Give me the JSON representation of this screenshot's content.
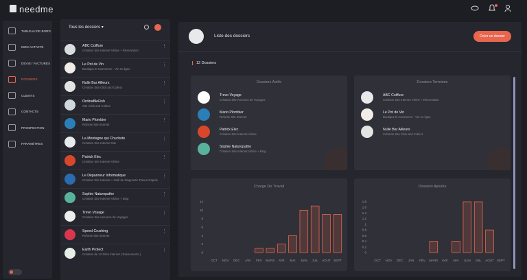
{
  "header": {
    "logo": "needme"
  },
  "sidebar": {
    "items": [
      "TABLEAU DE BORD",
      "MON ACTIVITÉ",
      "DEVIS / FACTURES",
      "DOSSIERS",
      "CLIENTS",
      "CONTACTS",
      "PROSPECTION",
      "PARAMÈTRES"
    ]
  },
  "folders": {
    "filter": "Tous les dossiers",
    "items": [
      {
        "name": "ABC Coiffure",
        "desc": "Création Site Internet Vitrine + Réservation"
      },
      {
        "name": "Le Pot de Vin",
        "desc": "Boutique E-Commerce - Vin en ligne"
      },
      {
        "name": "Nulle Bar Ailleurs",
        "desc": "Création Site Click and Collect"
      },
      {
        "name": "OrdinaBleFish",
        "desc": "Site Click and Collect"
      },
      {
        "name": "Mario Plombier",
        "desc": "Refonte Site Internet"
      },
      {
        "name": "La Montagne qui Chuchote",
        "desc": "Création Site Internet Site"
      },
      {
        "name": "Patrick Elec",
        "desc": "Création Site Internet Vitrine"
      },
      {
        "name": "Le Dépanneur Informatique",
        "desc": "Création Site Internet + Outil de Diagnostic Panne Rapide"
      },
      {
        "name": "Sophie Naturopathe",
        "desc": "Création Site Internet Vitrine + Blog"
      },
      {
        "name": "Trevo Voyage",
        "desc": "Création Site Annonce de Voyages"
      },
      {
        "name": "Speed Crushing",
        "desc": "Refonte Site Internet"
      },
      {
        "name": "Earth Protect",
        "desc": "Création de 12 Sites Internet ( Evènements )"
      }
    ]
  },
  "main": {
    "title": "Liste des dossiers",
    "create_button": "Créer un dossier",
    "count": "12 Dossiers",
    "active": {
      "title": "Dossiers Actifs",
      "items": [
        {
          "name": "Trevo Voyage",
          "desc": "Création Site Annonce de Voyages"
        },
        {
          "name": "Mario Plombier",
          "desc": "Refonte Site Internet"
        },
        {
          "name": "Patrick Elec",
          "desc": "Création Site Internet Vitrine"
        },
        {
          "name": "Sophie Naturopathe",
          "desc": "Création Site Internet Vitrine + Blog"
        }
      ]
    },
    "done": {
      "title": "Dossiers Terminés",
      "items": [
        {
          "name": "ABC Coiffure",
          "desc": "Création Site Internet Vitrine + Réservation"
        },
        {
          "name": "Le Pot de Vin",
          "desc": "Boutique E-Commerce - Vin en ligne"
        },
        {
          "name": "Nulle Bar Ailleurs",
          "desc": "Création Site Click and Collect"
        }
      ]
    }
  },
  "chart_data": [
    {
      "type": "bar",
      "title": "Charge De Travail",
      "categories": [
        "OCT",
        "NOV",
        "DEC",
        "JAN",
        "FEV",
        "MARS",
        "AVR",
        "MAI",
        "JUIN",
        "JUIL",
        "AOUT",
        "SEPT"
      ],
      "values": [
        0,
        0,
        0,
        0,
        1,
        1,
        2,
        4,
        10,
        11,
        9,
        9
      ],
      "color": "#e8664e",
      "ylim": [
        0,
        12
      ],
      "yticks": [
        0,
        2,
        4,
        6,
        8,
        10,
        12
      ],
      "grid": false
    },
    {
      "type": "bar",
      "title": "Dossiers Ajoutés",
      "categories": [
        "OCT",
        "NOV",
        "DEC",
        "JAN",
        "FEV",
        "MARS",
        "AVR",
        "MAI",
        "JUIN",
        "JUIL",
        "AOUT",
        "SEPT"
      ],
      "values": [
        0,
        0,
        0,
        0,
        0,
        0.4,
        0,
        0.4,
        1.8,
        1.8,
        0.8,
        0
      ],
      "color": "#e8664e",
      "ylim": [
        0,
        1.8
      ],
      "yticks": [
        0,
        0.2,
        0.4,
        0.6,
        0.8,
        1,
        1.2,
        1.4,
        1.6,
        1.8
      ],
      "grid": false
    }
  ]
}
